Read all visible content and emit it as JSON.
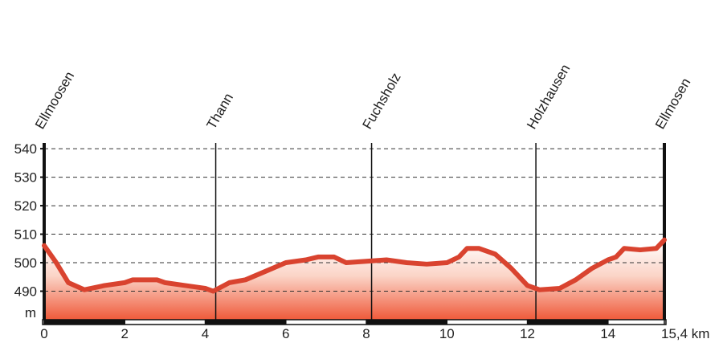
{
  "chart_data": {
    "type": "line",
    "color": "#d9432f",
    "fill": true,
    "grid": true,
    "y_label": "m",
    "xlim": [
      0,
      15.4
    ],
    "ylim": [
      480,
      542
    ],
    "xticks": [
      0,
      2,
      4,
      6,
      8,
      10,
      12,
      14,
      {
        "value": 15.4,
        "label": "15,4 km"
      }
    ],
    "yticks": [
      490,
      500,
      510,
      520,
      530,
      540
    ],
    "x": [
      0,
      0.3,
      0.6,
      1.0,
      1.5,
      2.0,
      2.2,
      2.8,
      3.0,
      3.5,
      4.0,
      4.2,
      4.6,
      5.0,
      5.5,
      6.0,
      6.5,
      6.8,
      7.2,
      7.5,
      8.0,
      8.5,
      9.0,
      9.5,
      10.0,
      10.3,
      10.5,
      10.8,
      11.2,
      11.6,
      12.0,
      12.3,
      12.8,
      13.2,
      13.6,
      14.0,
      14.2,
      14.4,
      14.8,
      15.2,
      15.4
    ],
    "values": [
      506,
      500,
      493,
      490.5,
      492,
      493,
      494,
      494,
      493,
      492,
      491,
      490,
      493,
      494,
      497,
      500,
      501,
      502,
      502,
      500,
      500.5,
      501,
      500,
      499.5,
      500,
      502,
      505,
      505,
      503,
      498,
      492,
      490.5,
      491,
      494,
      498,
      501,
      502,
      505,
      504.5,
      505,
      508
    ],
    "annotations": [
      {
        "x": 0,
        "label": "Ellmoosen"
      },
      {
        "x": 4.26,
        "label": "Thann"
      },
      {
        "x": 8.13,
        "label": "Fuchsholz"
      },
      {
        "x": 12.21,
        "label": "Holzhausen"
      },
      {
        "x": 15.4,
        "label": "Ellmosen"
      }
    ]
  }
}
